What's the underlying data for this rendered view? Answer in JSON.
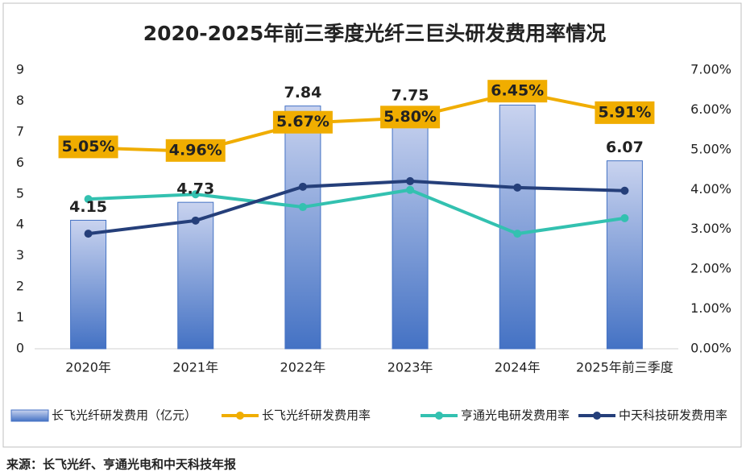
{
  "chart_data": {
    "type": "bar",
    "title": "2020-2025年前三季度光纤三巨头研发费用率情况",
    "categories": [
      "2020年",
      "2021年",
      "2022年",
      "2023年",
      "2024年",
      "2025年前三季度"
    ],
    "series": [
      {
        "name": "长飞光纤研发费用（亿元）",
        "type": "bar",
        "color": "#4472c4",
        "values": [
          4.15,
          4.73,
          7.84,
          7.75,
          7.87,
          6.07
        ]
      },
      {
        "name": "长飞光纤研发费用率",
        "type": "line",
        "axis": "y2",
        "color": "#f0ad00",
        "values": [
          5.05,
          4.96,
          5.67,
          5.8,
          6.45,
          5.91
        ],
        "value_labels": [
          "5.05%",
          "4.96%",
          "5.67%",
          "5.80%",
          "6.45%",
          "5.91%"
        ]
      },
      {
        "name": "亨通光电研发费用率",
        "type": "line",
        "axis": "y2",
        "color": "#33c1b0",
        "values": [
          3.76,
          3.88,
          3.56,
          3.99,
          2.89,
          3.28
        ]
      },
      {
        "name": "中天科技研发费用率",
        "type": "line",
        "axis": "y2",
        "color": "#253f7a",
        "values": [
          2.89,
          3.22,
          4.07,
          4.21,
          4.05,
          3.97
        ]
      }
    ],
    "ylim": [
      0,
      9
    ],
    "yticks": [
      0,
      1,
      2,
      3,
      4,
      5,
      6,
      7,
      8,
      9
    ],
    "y2lim": [
      0,
      7
    ],
    "y2ticks": [
      {
        "value": 0,
        "label": "0.00%"
      },
      {
        "value": 1,
        "label": "1.00%"
      },
      {
        "value": 2,
        "label": "2.00%"
      },
      {
        "value": 3,
        "label": "3.00%"
      },
      {
        "value": 4,
        "label": "4.00%"
      },
      {
        "value": 5,
        "label": "5.00%"
      },
      {
        "value": 6,
        "label": "6.00%"
      },
      {
        "value": 7,
        "label": "7.00%"
      }
    ],
    "legend": "bottom",
    "source": "来源：长飞光纤、亨通光电和中天科技年报"
  }
}
